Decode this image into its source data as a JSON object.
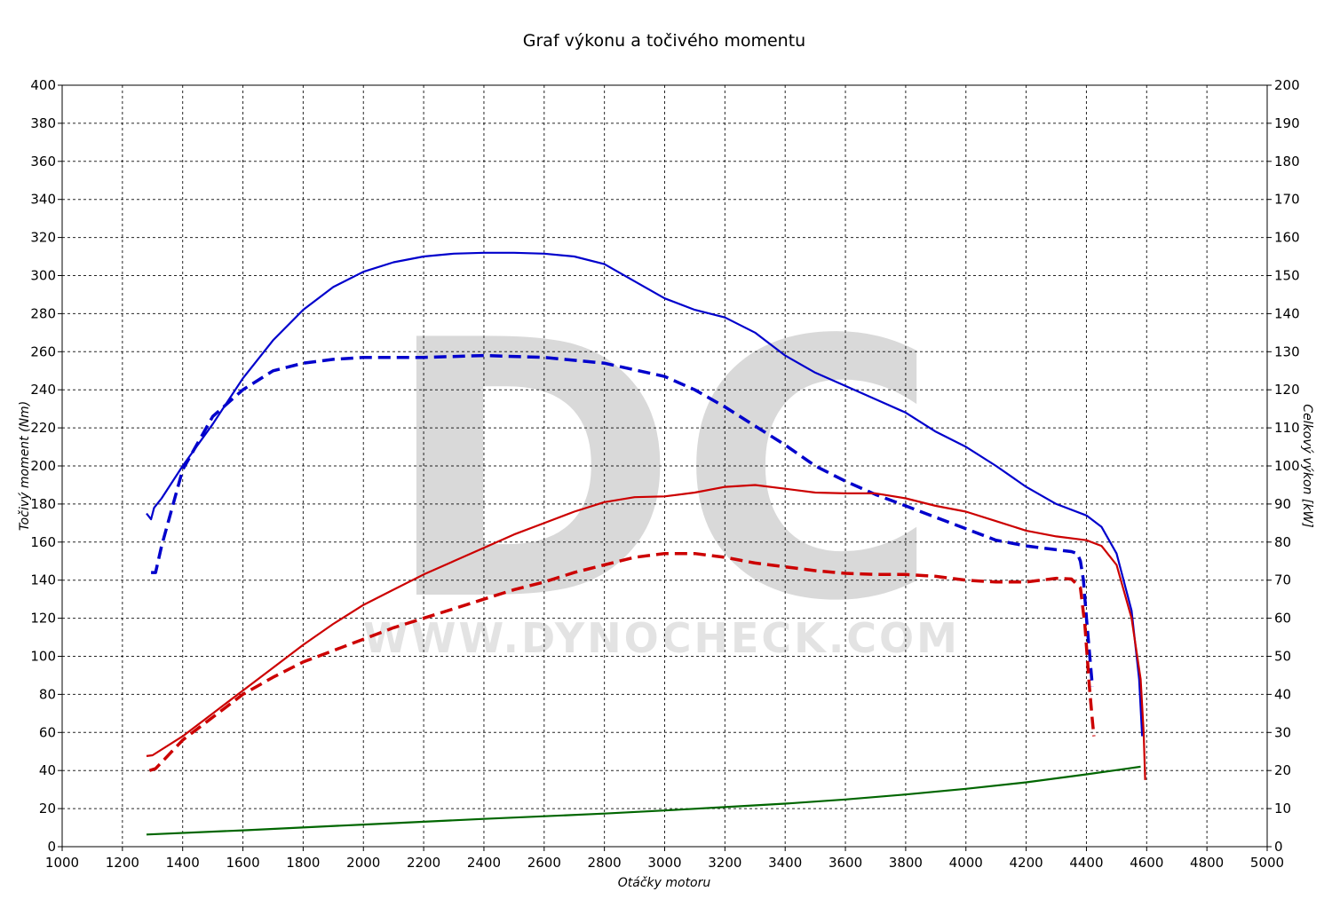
{
  "chart_data": {
    "type": "line",
    "title": "Graf výkonu a točivého momentu",
    "xlabel": "Otáčky motoru",
    "ylabel_left": "Točivý moment (Nm)",
    "ylabel_right": "Celkový výkon [kW]",
    "xlim": [
      1000,
      5000
    ],
    "ylim_left": [
      0,
      400
    ],
    "ylim_right": [
      0,
      200
    ],
    "x_ticks": [
      1000,
      1200,
      1400,
      1600,
      1800,
      2000,
      2200,
      2400,
      2600,
      2800,
      3000,
      3200,
      3400,
      3600,
      3800,
      4000,
      4200,
      4400,
      4600,
      4800,
      5000
    ],
    "y_left_ticks": [
      0,
      20,
      40,
      60,
      80,
      100,
      120,
      140,
      160,
      180,
      200,
      220,
      240,
      260,
      280,
      300,
      320,
      340,
      360,
      380,
      400
    ],
    "y_right_ticks": [
      0,
      10,
      20,
      30,
      40,
      50,
      60,
      70,
      80,
      90,
      100,
      110,
      120,
      130,
      140,
      150,
      160,
      170,
      180,
      190,
      200
    ],
    "grid": true,
    "watermark": {
      "logo": "DC",
      "text": "WWW.DYNOCHECK.COM"
    },
    "colors": {
      "torque": "#0000cc",
      "power": "#cc0000",
      "loss": "#006600",
      "grid": "#000000"
    },
    "series": [
      {
        "axis": "left",
        "style": "solid",
        "color": "#0000cc",
        "x": [
          1280,
          1295,
          1305,
          1330,
          1400,
          1500,
          1600,
          1700,
          1800,
          1900,
          2000,
          2100,
          2200,
          2300,
          2400,
          2500,
          2600,
          2700,
          2800,
          2900,
          3000,
          3100,
          3200,
          3300,
          3400,
          3500,
          3600,
          3700,
          3800,
          3900,
          4000,
          4100,
          4200,
          4300,
          4400,
          4450,
          4500,
          4550,
          4575,
          4585
        ],
        "y": [
          175,
          172,
          178,
          183,
          200,
          222,
          246,
          266,
          282,
          294,
          302,
          307,
          310,
          311.5,
          312,
          312,
          311.5,
          310,
          306,
          297,
          288,
          282,
          278,
          270,
          258,
          249,
          242,
          235,
          228,
          218,
          210,
          200,
          189,
          180,
          174,
          168,
          154,
          124,
          88,
          58
        ]
      },
      {
        "axis": "left",
        "style": "dashed",
        "color": "#0000cc",
        "x": [
          1295,
          1310,
          1330,
          1400,
          1500,
          1600,
          1700,
          1800,
          1900,
          2000,
          2200,
          2400,
          2600,
          2800,
          3000,
          3100,
          3200,
          3300,
          3400,
          3500,
          3600,
          3700,
          3800,
          3900,
          4000,
          4100,
          4200,
          4300,
          4350,
          4370,
          4380,
          4390,
          4400,
          4420
        ],
        "y": [
          144,
          144,
          158,
          198,
          226,
          240,
          250,
          254,
          256,
          257,
          257,
          258,
          257,
          254,
          247,
          240,
          231,
          221,
          211,
          200,
          192,
          185,
          179,
          173,
          167,
          161,
          158,
          156,
          155,
          154,
          150,
          140,
          120,
          84
        ]
      },
      {
        "axis": "right",
        "style": "solid",
        "color": "#cc0000",
        "x": [
          1280,
          1300,
          1400,
          1500,
          1600,
          1700,
          1800,
          1900,
          2000,
          2100,
          2200,
          2300,
          2400,
          2500,
          2600,
          2700,
          2800,
          2900,
          3000,
          3100,
          3200,
          3300,
          3400,
          3500,
          3600,
          3700,
          3800,
          3900,
          4000,
          4100,
          4200,
          4300,
          4400,
          4450,
          4500,
          4550,
          4580,
          4590,
          4595
        ],
        "y": [
          23.8,
          24,
          29,
          35,
          41,
          47,
          53,
          58.5,
          63.5,
          67.5,
          71.5,
          75,
          78.5,
          82,
          85,
          88,
          90.5,
          91.8,
          92,
          93,
          94.5,
          95,
          94,
          93,
          92.8,
          92.8,
          91.5,
          89.5,
          88,
          85.5,
          83,
          81.5,
          80.5,
          79,
          74,
          60,
          44,
          30,
          17.5
        ]
      },
      {
        "axis": "right",
        "style": "dashed",
        "color": "#cc0000",
        "x": [
          1290,
          1310,
          1400,
          1500,
          1600,
          1700,
          1800,
          1900,
          2000,
          2100,
          2200,
          2300,
          2400,
          2500,
          2600,
          2700,
          2800,
          2900,
          3000,
          3100,
          3200,
          3300,
          3400,
          3500,
          3600,
          3700,
          3800,
          3900,
          4000,
          4100,
          4200,
          4300,
          4350,
          4380,
          4395,
          4410,
          4420,
          4425
        ],
        "y": [
          20,
          20.5,
          28,
          34,
          40,
          44.5,
          48.5,
          51.5,
          54.5,
          57.5,
          60,
          62.5,
          65,
          67.5,
          69.5,
          72,
          74,
          76,
          77,
          77,
          76,
          74.5,
          73.5,
          72.5,
          71.8,
          71.5,
          71.5,
          71,
          70,
          69.5,
          69.5,
          70.5,
          70.3,
          68,
          58,
          42,
          33,
          29
        ]
      },
      {
        "axis": "right",
        "style": "solid",
        "color": "#006600",
        "x": [
          1280,
          1600,
          2000,
          2400,
          2800,
          3000,
          3200,
          3400,
          3600,
          3800,
          4000,
          4200,
          4400,
          4580
        ],
        "y": [
          3.2,
          4.3,
          5.8,
          7.3,
          8.7,
          9.5,
          10.4,
          11.3,
          12.4,
          13.7,
          15.2,
          16.9,
          19,
          21
        ]
      }
    ]
  }
}
